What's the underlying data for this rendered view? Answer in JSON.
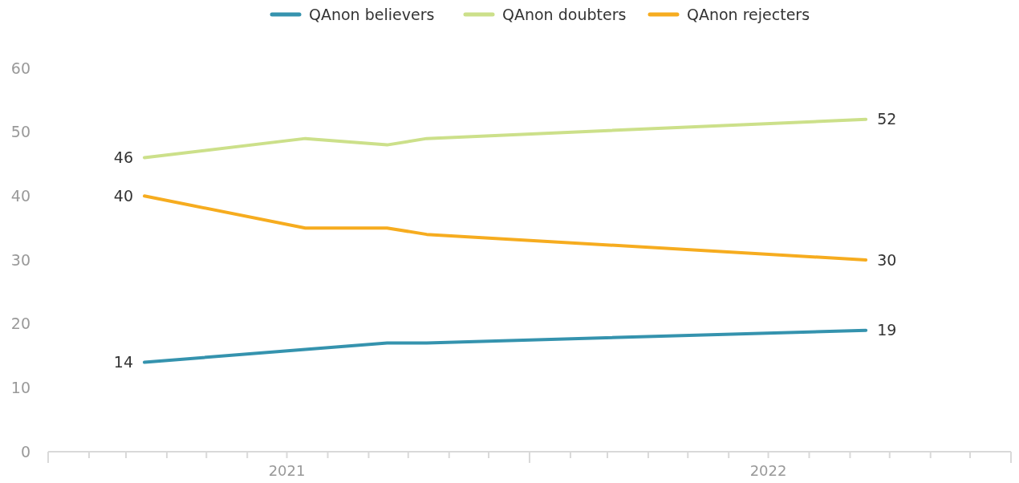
{
  "chart_data": {
    "type": "line",
    "x": [
      "2021-03-15",
      "2021-07-15",
      "2021-09-15",
      "2021-10-15",
      "2022-09-13"
    ],
    "series": [
      {
        "name": "QAnon believers",
        "color": "#3593ae",
        "values": [
          14,
          16,
          17,
          17,
          19
        ],
        "value_labels": [
          "14",
          null,
          null,
          null,
          "19"
        ]
      },
      {
        "name": "QAnon doubters",
        "color": "#cce08a",
        "values": [
          46,
          49,
          48,
          49,
          52
        ],
        "value_labels": [
          "46",
          null,
          null,
          null,
          "52"
        ]
      },
      {
        "name": "QAnon rejecters",
        "color": "#f6ac1f",
        "values": [
          40,
          35,
          35,
          34,
          30
        ],
        "value_labels": [
          "40",
          null,
          null,
          null,
          "30"
        ]
      }
    ],
    "ylim": [
      0,
      60
    ],
    "yticks": [
      0,
      10,
      20,
      30,
      40,
      50,
      60
    ],
    "xlim": [
      "2021-01-01",
      "2023-01-01"
    ],
    "xticks": [
      {
        "value": "2021-01-01",
        "label": null
      },
      {
        "value": "2021-02-01",
        "label": null
      },
      {
        "value": "2021-03-01",
        "label": null
      },
      {
        "value": "2021-04-01",
        "label": null
      },
      {
        "value": "2021-05-01",
        "label": null
      },
      {
        "value": "2021-06-01",
        "label": null
      },
      {
        "value": "2021-07-01",
        "label": "2021"
      },
      {
        "value": "2021-08-01",
        "label": null
      },
      {
        "value": "2021-09-01",
        "label": null
      },
      {
        "value": "2021-10-01",
        "label": null
      },
      {
        "value": "2021-11-01",
        "label": null
      },
      {
        "value": "2021-12-01",
        "label": null
      },
      {
        "value": "2022-01-01",
        "label": null
      },
      {
        "value": "2022-02-01",
        "label": null
      },
      {
        "value": "2022-03-01",
        "label": null
      },
      {
        "value": "2022-04-01",
        "label": null
      },
      {
        "value": "2022-05-01",
        "label": null
      },
      {
        "value": "2022-06-01",
        "label": null
      },
      {
        "value": "2022-07-01",
        "label": "2022"
      },
      {
        "value": "2022-08-01",
        "label": null
      },
      {
        "value": "2022-09-01",
        "label": null
      },
      {
        "value": "2022-10-01",
        "label": null
      },
      {
        "value": "2022-11-01",
        "label": null
      },
      {
        "value": "2022-12-01",
        "label": null
      },
      {
        "value": "2023-01-01",
        "label": null
      }
    ],
    "legend": "top",
    "marker": "none",
    "line_style": "solid",
    "grid": false
  }
}
